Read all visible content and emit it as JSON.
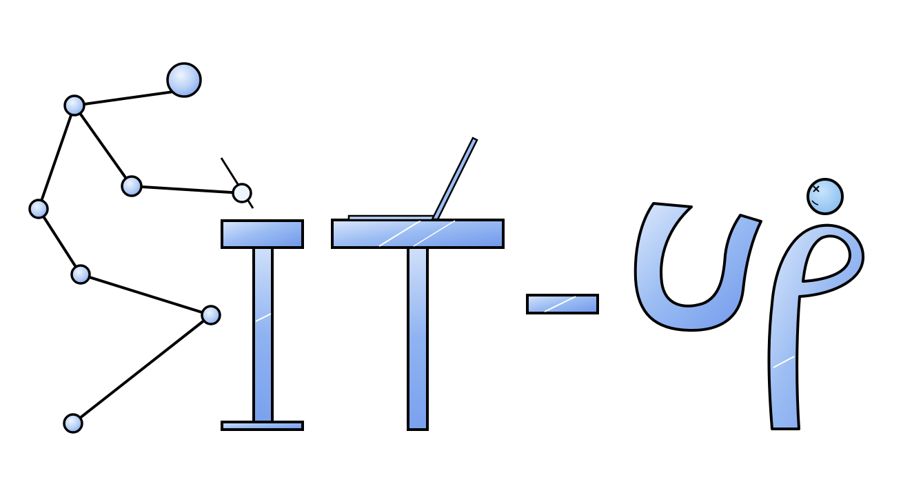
{
  "logo": {
    "wordmark": "SIT-UP",
    "colors": {
      "outline": "#000000",
      "fill_light": "#dbe8fb",
      "fill_mid": "#9cbdf3",
      "fill_dark": "#6f97ec",
      "highlight": "#ffffff",
      "background": "#ffffff"
    }
  }
}
